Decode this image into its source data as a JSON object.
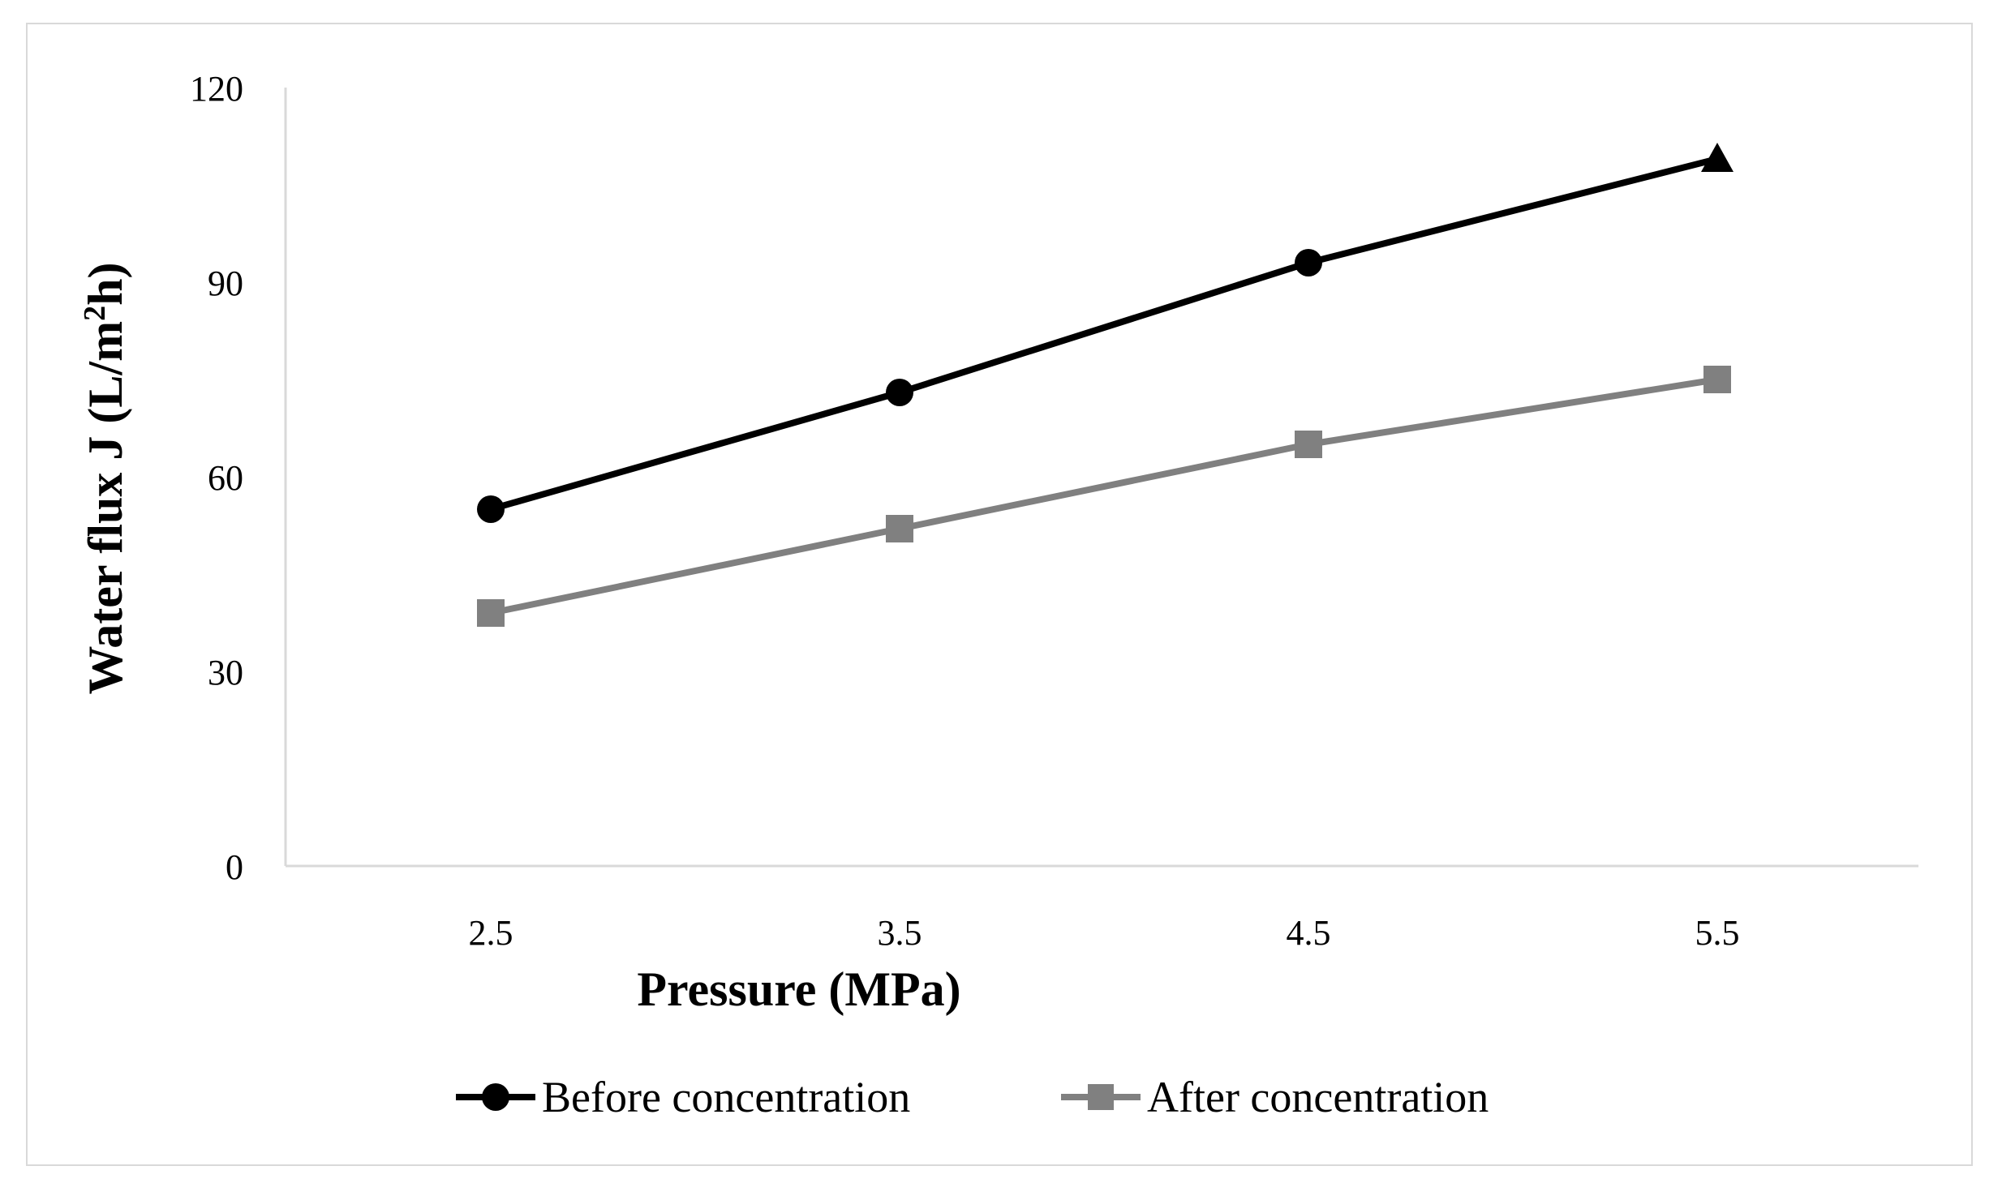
{
  "chart_data": {
    "type": "line",
    "title": "",
    "xlabel": "Pressure (MPa)",
    "ylabel_main": "Water flux J (L/m",
    "ylabel_sup": "2",
    "ylabel_end": "h)",
    "categories": [
      "2.5",
      "3.5",
      "4.5",
      "5.5"
    ],
    "ylim": [
      0,
      120
    ],
    "yticks": [
      "0",
      "30",
      "60",
      "90",
      "120"
    ],
    "grid": false,
    "legend_position": "bottom",
    "series": [
      {
        "name": "Before concentration",
        "values": [
          55,
          73,
          93,
          109
        ],
        "color": "#000000",
        "markers": [
          "circle",
          "circle",
          "circle",
          "triangle"
        ]
      },
      {
        "name": "After concentration",
        "values": [
          39,
          52,
          65,
          75
        ],
        "color": "#808080",
        "markers": [
          "square",
          "square",
          "square",
          "square"
        ]
      }
    ]
  }
}
